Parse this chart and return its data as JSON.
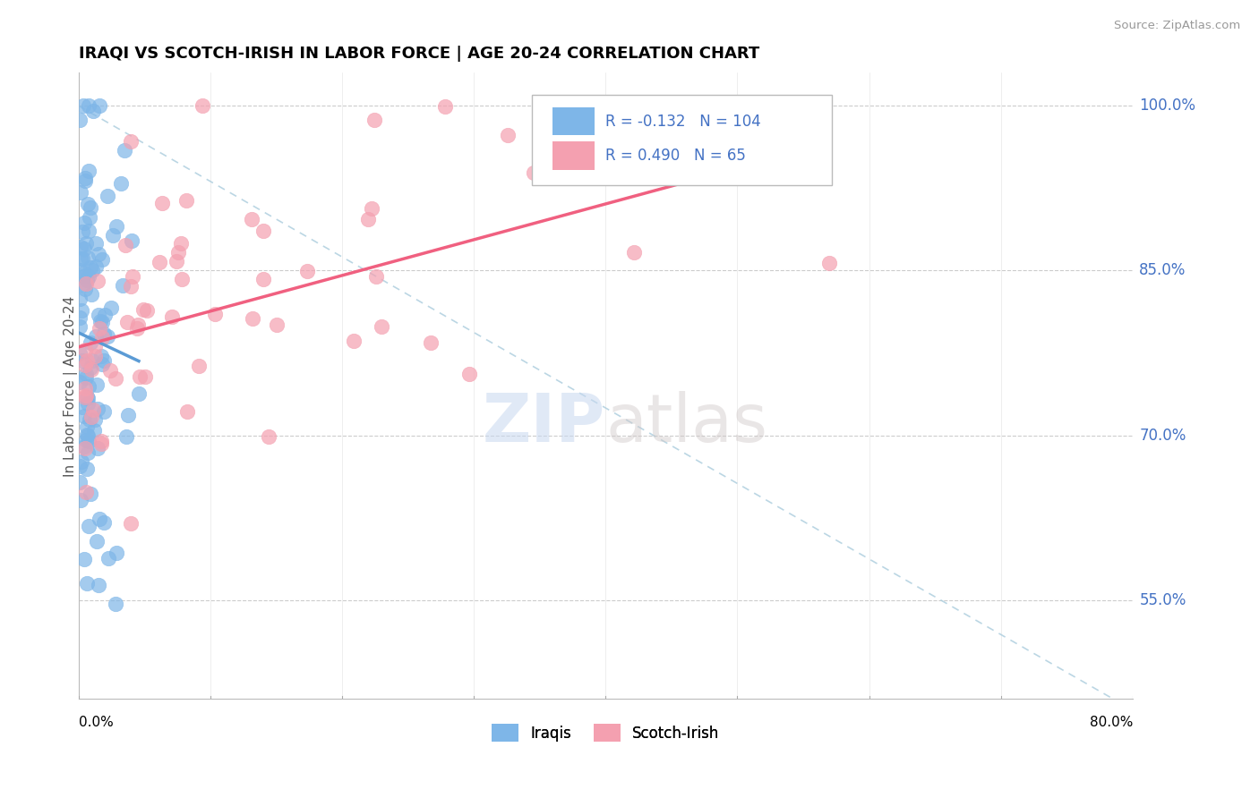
{
  "title": "IRAQI VS SCOTCH-IRISH IN LABOR FORCE | AGE 20-24 CORRELATION CHART",
  "source": "Source: ZipAtlas.com",
  "ylabel": "In Labor Force | Age 20-24",
  "xmin": 0.0,
  "xmax": 80.0,
  "ymin": 46.0,
  "ymax": 103.0,
  "yticks": [
    55.0,
    70.0,
    85.0,
    100.0
  ],
  "iraqis_color": "#7EB6E8",
  "scotch_irish_color": "#F4A0B0",
  "iraqis_line_color": "#5B9BD5",
  "scotch_irish_line_color": "#F06080",
  "diagonal_color": "#AACCDD",
  "R_iraqi": -0.132,
  "N_iraqi": 104,
  "R_scotch": 0.49,
  "N_scotch": 65,
  "legend_label_iraqi": "Iraqis",
  "legend_label_scotch": "Scotch-Irish",
  "watermark_zip": "ZIP",
  "watermark_atlas": "atlas"
}
